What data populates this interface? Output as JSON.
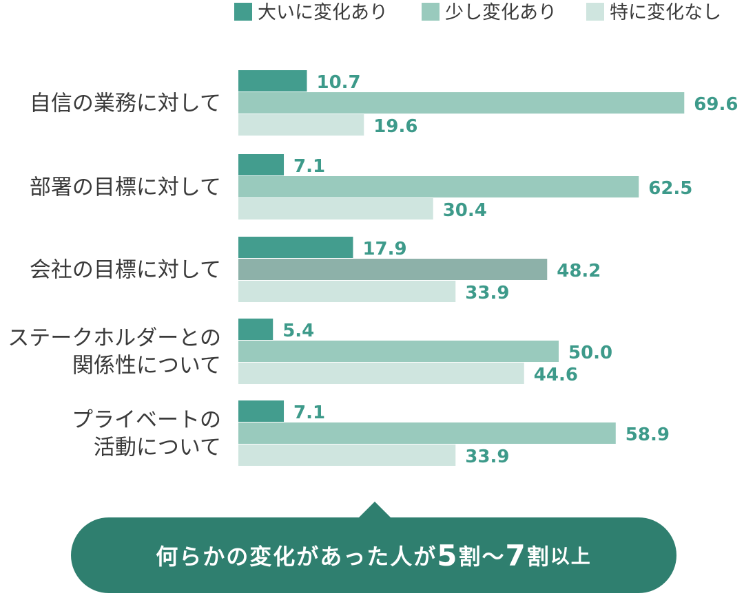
{
  "chart_data": {
    "type": "bar",
    "orientation": "horizontal",
    "categories": [
      [
        "自信の業務に対して"
      ],
      [
        "部署の目標に対して"
      ],
      [
        "会社の目標に対して"
      ],
      [
        "ステークホルダーとの",
        "関係性について"
      ],
      [
        "プライベートの",
        "活動について"
      ]
    ],
    "series": [
      {
        "name": "大いに変化あり",
        "color": "#439d8e",
        "values": [
          10.7,
          7.1,
          17.9,
          5.4,
          7.1
        ]
      },
      {
        "name": "少し変化あり",
        "color": "#99cabd",
        "values": [
          69.6,
          62.5,
          48.2,
          50.0,
          58.9
        ]
      },
      {
        "name": "特に変化なし",
        "color": "#cfe5df",
        "values": [
          19.6,
          30.4,
          33.9,
          44.6,
          33.9
        ]
      }
    ],
    "value_labels": [
      [
        "10.7",
        "7.1",
        "17.9",
        "5.4",
        "7.1"
      ],
      [
        "69.6",
        "62.5",
        "48.2",
        "50.0",
        "58.9"
      ],
      [
        "19.6",
        "30.4",
        "33.9",
        "44.6",
        "33.9"
      ]
    ],
    "highlight": {
      "series": 1,
      "category": 2,
      "color": "#8db1a9"
    },
    "value_label_color": "#3d9a8a",
    "xlim": [
      0,
      70
    ],
    "legend_position": "top-right",
    "grid": false
  },
  "callout": {
    "prefix": "何らかの変化があった人が",
    "num1": "5",
    "mid": "割〜",
    "num2": "7",
    "suffix1": "割",
    "suffix2": "以上",
    "color": "#2f7f6f"
  }
}
